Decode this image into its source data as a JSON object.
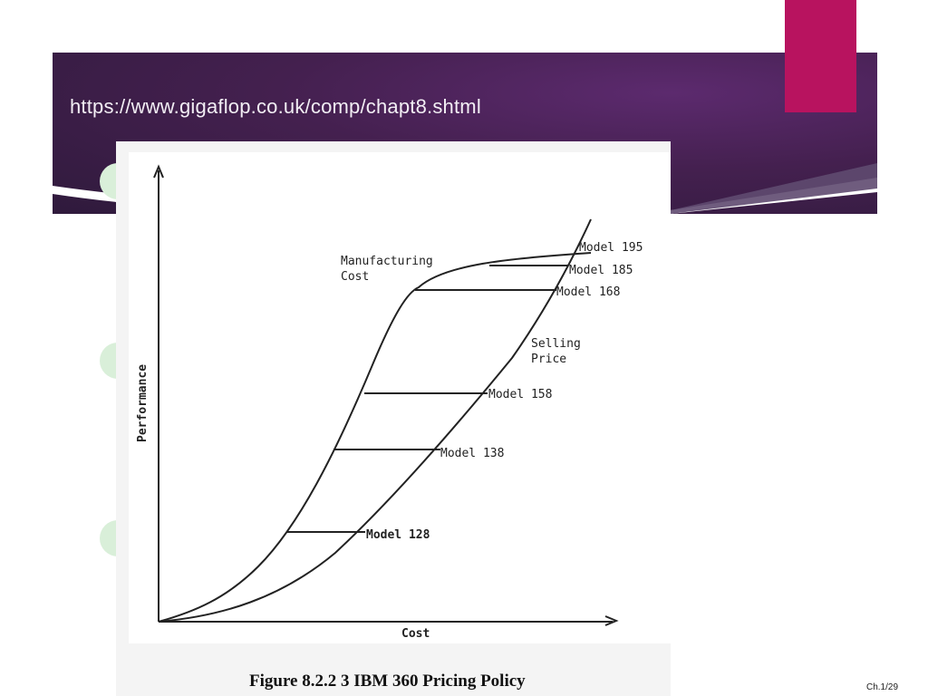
{
  "slide": {
    "url": "https://www.gigaflop.co.uk/comp/chapt8.shtml",
    "slide_number": "Ch.1/29",
    "colors": {
      "banner": "#44204f",
      "accent": "#b8135f",
      "deco_circle": "#d9efd9",
      "deco_circle_bottom": "#eef1dc"
    }
  },
  "figure": {
    "caption": "Figure 8.2.2 3 IBM 360 Pricing Policy",
    "x_axis_label": "Cost",
    "y_axis_label": "Performance",
    "curve_labels": {
      "manufacturing_line1": "Manufacturing",
      "manufacturing_line2": "Cost",
      "selling_line1": "Selling",
      "selling_line2": "Price"
    },
    "models": [
      {
        "label": "Model 195"
      },
      {
        "label": "Model 185"
      },
      {
        "label": "Model 168"
      },
      {
        "label": "Model 158"
      },
      {
        "label": "Model 138"
      },
      {
        "label": "Model 128"
      }
    ]
  }
}
